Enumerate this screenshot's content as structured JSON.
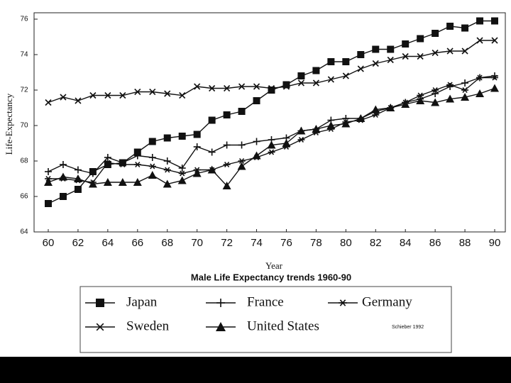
{
  "chart_data": {
    "type": "line",
    "title": "Male Life Expectancy trends 1960-90",
    "x_label": "Year",
    "y_label": "Life-Expectancy",
    "annotation": "Schieber 1992",
    "x": [
      60,
      61,
      62,
      63,
      64,
      65,
      66,
      67,
      68,
      69,
      70,
      71,
      72,
      73,
      74,
      75,
      76,
      77,
      78,
      79,
      80,
      81,
      82,
      83,
      84,
      85,
      86,
      87,
      88,
      89,
      90
    ],
    "xlim": [
      59,
      91
    ],
    "xticks": [
      60,
      62,
      64,
      66,
      68,
      70,
      72,
      74,
      76,
      78,
      80,
      82,
      84,
      86,
      88,
      90
    ],
    "ylim": [
      64,
      76
    ],
    "yticks": [
      64,
      66,
      68,
      70,
      72,
      74,
      76
    ],
    "series": [
      {
        "name": "Japan",
        "color": "#111111",
        "marker": "square",
        "values": [
          65.6,
          66.0,
          66.4,
          67.4,
          67.8,
          67.9,
          68.5,
          69.1,
          69.3,
          69.4,
          69.5,
          70.3,
          70.6,
          70.8,
          71.4,
          72.0,
          72.3,
          72.8,
          73.1,
          73.6,
          73.6,
          74.0,
          74.3,
          74.3,
          74.6,
          74.9,
          75.2,
          75.6,
          75.5,
          75.9,
          75.9
        ]
      },
      {
        "name": "France",
        "color": "#111111",
        "marker": "plus",
        "values": [
          67.4,
          67.8,
          67.5,
          67.3,
          68.2,
          67.9,
          68.3,
          68.2,
          68.0,
          67.6,
          68.8,
          68.5,
          68.9,
          68.9,
          69.1,
          69.2,
          69.3,
          69.7,
          69.8,
          70.3,
          70.4,
          70.4,
          70.8,
          71.0,
          71.3,
          71.5,
          71.8,
          72.2,
          72.4,
          72.7,
          72.8
        ]
      },
      {
        "name": "Germany",
        "color": "#111111",
        "marker": "asterisk",
        "values": [
          67.0,
          67.0,
          66.9,
          66.8,
          67.9,
          67.8,
          67.8,
          67.7,
          67.5,
          67.3,
          67.5,
          67.5,
          67.8,
          68.0,
          68.2,
          68.5,
          68.8,
          69.2,
          69.6,
          69.8,
          70.2,
          70.3,
          70.6,
          71.0,
          71.3,
          71.7,
          72.0,
          72.3,
          72.0,
          72.7,
          72.7
        ]
      },
      {
        "name": "Sweden",
        "color": "#111111",
        "marker": "x",
        "values": [
          71.3,
          71.6,
          71.4,
          71.7,
          71.7,
          71.7,
          71.9,
          71.9,
          71.8,
          71.7,
          72.2,
          72.1,
          72.1,
          72.2,
          72.2,
          72.1,
          72.2,
          72.4,
          72.4,
          72.6,
          72.8,
          73.2,
          73.5,
          73.7,
          73.9,
          73.9,
          74.1,
          74.2,
          74.2,
          74.8,
          74.8
        ]
      },
      {
        "name": "United States",
        "color": "#111111",
        "marker": "triangle",
        "values": [
          66.8,
          67.1,
          67.0,
          66.7,
          66.8,
          66.8,
          66.8,
          67.2,
          66.7,
          66.9,
          67.3,
          67.5,
          66.6,
          67.7,
          68.3,
          68.9,
          69.0,
          69.7,
          69.8,
          70.0,
          70.1,
          70.4,
          70.9,
          71.0,
          71.2,
          71.4,
          71.3,
          71.5,
          71.6,
          71.8,
          72.1
        ]
      }
    ]
  }
}
